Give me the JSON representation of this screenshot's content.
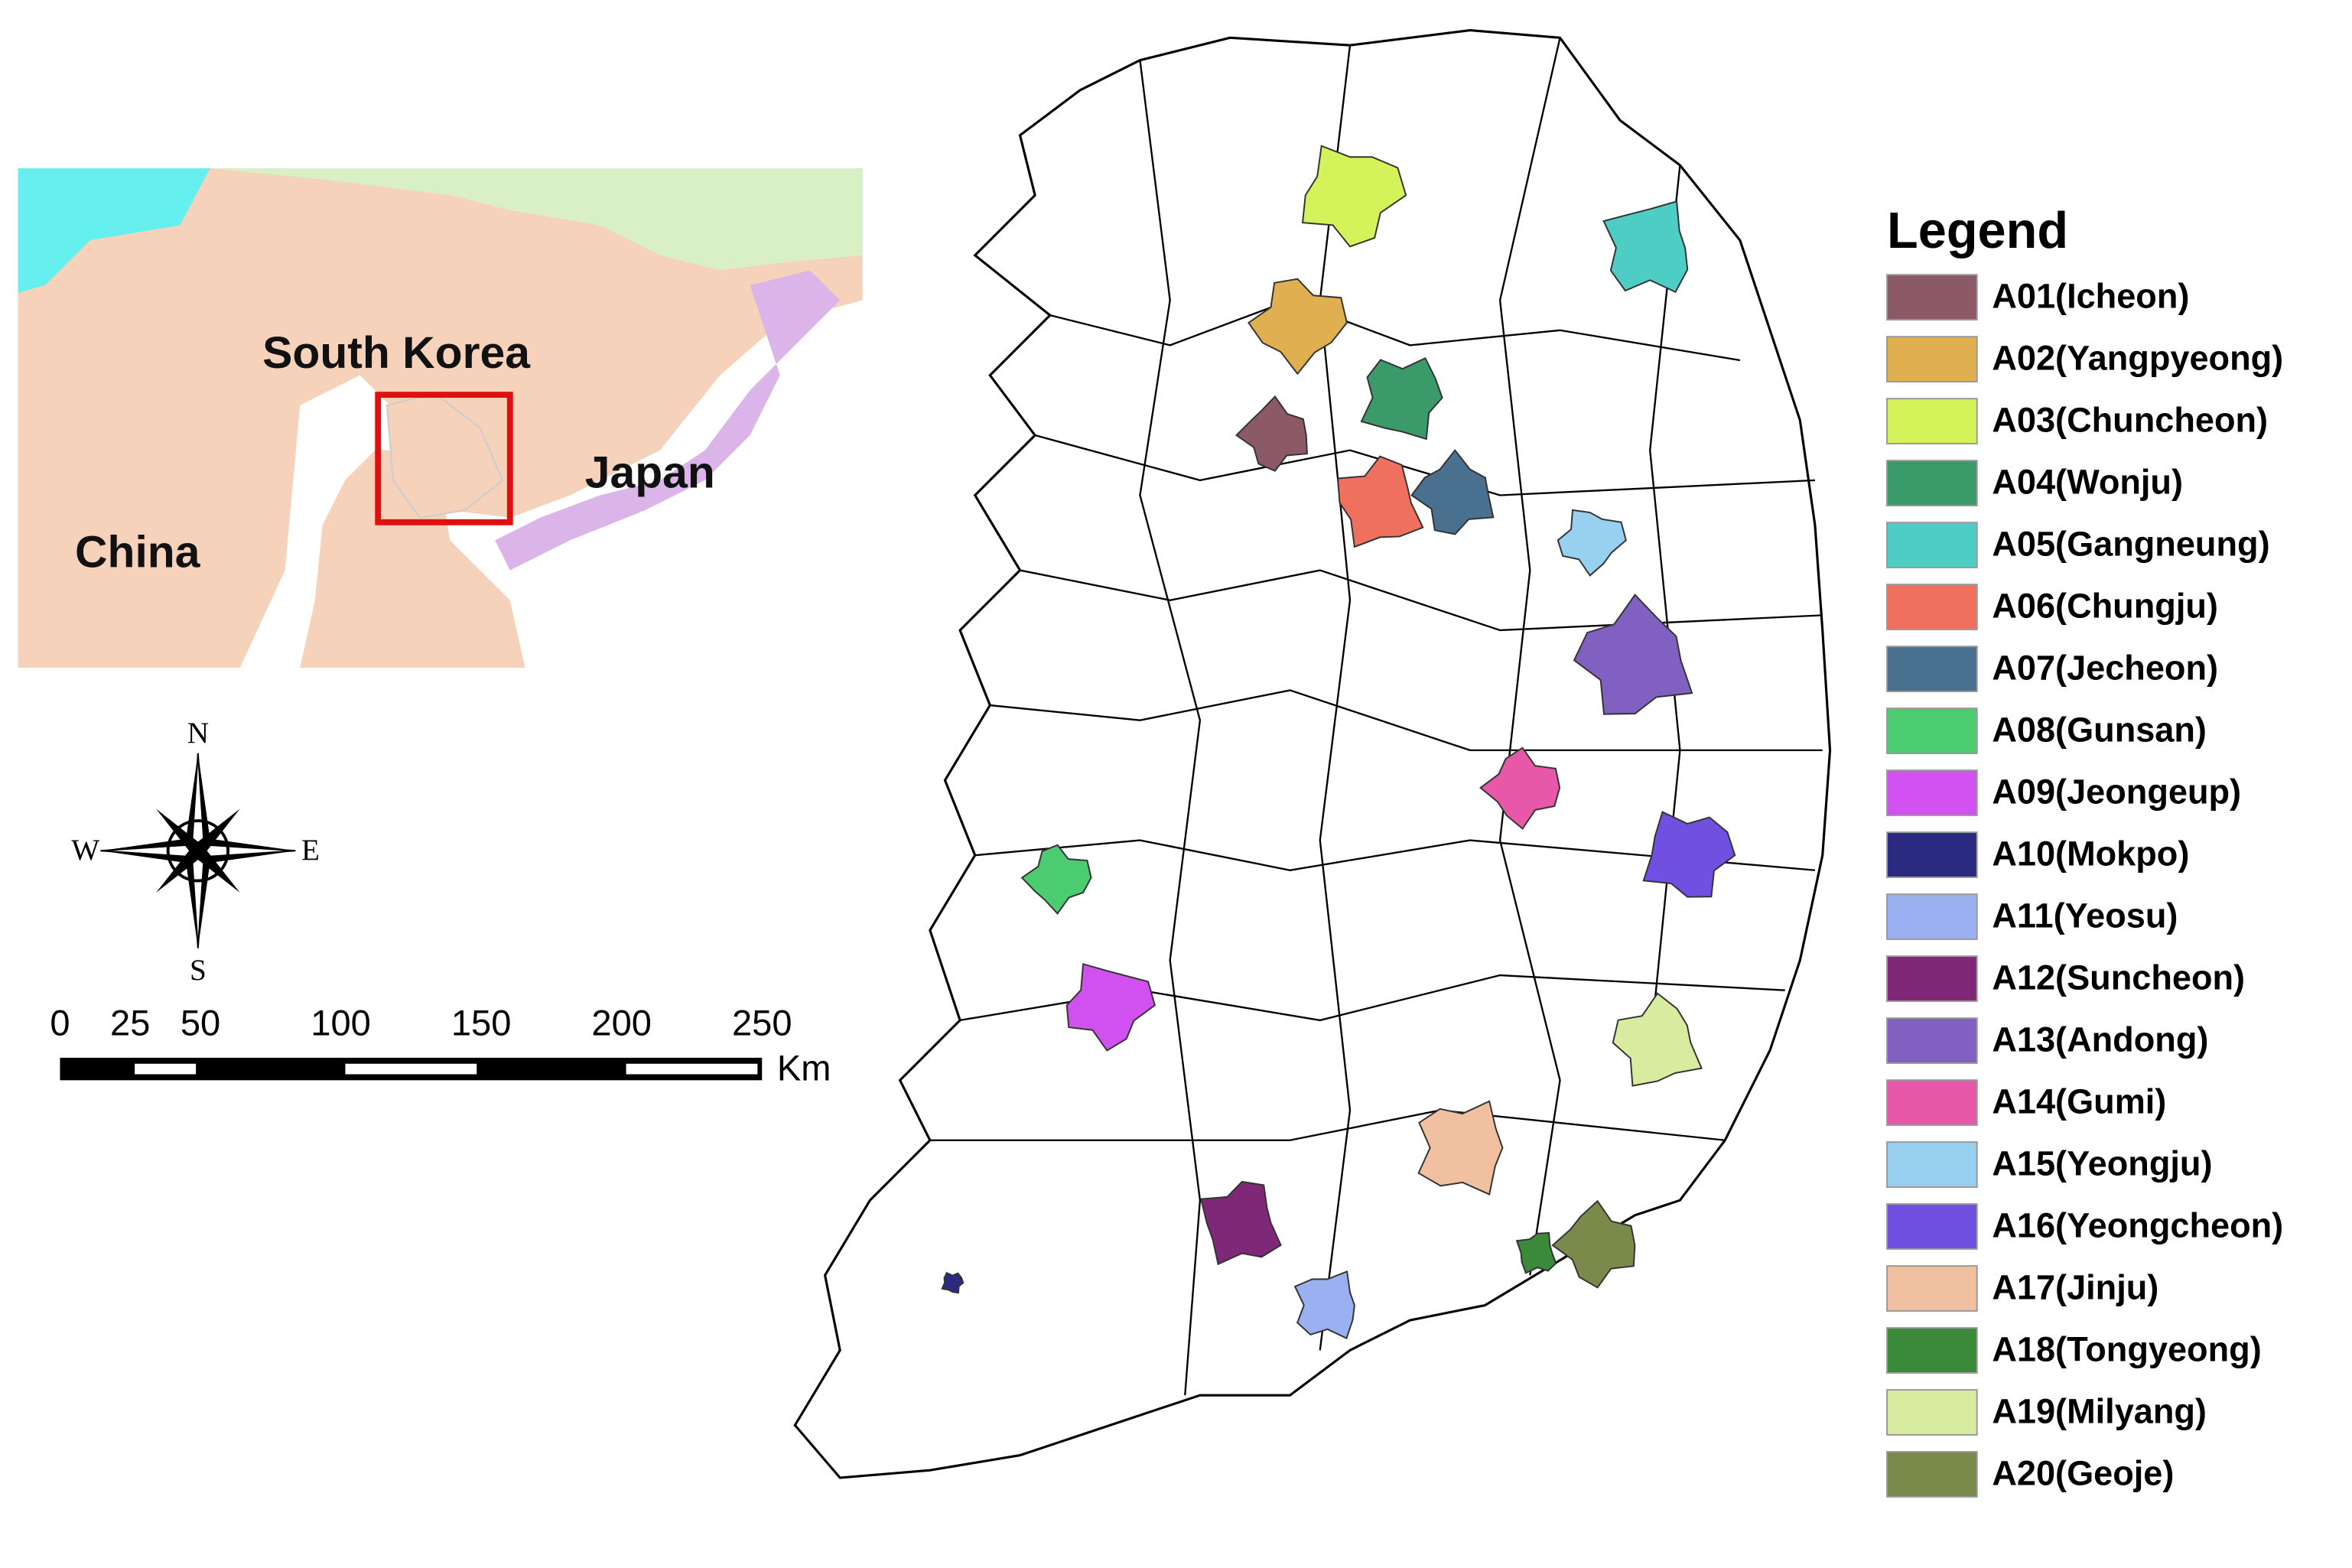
{
  "inset": {
    "labels": {
      "south_korea": "South Korea",
      "japan": "Japan",
      "china": "China"
    }
  },
  "compass": {
    "north": "N",
    "south": "S",
    "west": "W",
    "east": "E"
  },
  "scale_bar": {
    "ticks": [
      0,
      25,
      50,
      100,
      150,
      200,
      250
    ],
    "unit": "Km"
  },
  "legend": {
    "title": "Legend",
    "items": [
      {
        "label": "A01(Icheon)",
        "color": "#8b5a66"
      },
      {
        "label": "A02(Yangpyeong)",
        "color": "#e0b050"
      },
      {
        "label": "A03(Chuncheon)",
        "color": "#d4f25a"
      },
      {
        "label": "A04(Wonju)",
        "color": "#3a9a6a"
      },
      {
        "label": "A05(Gangneung)",
        "color": "#4ecdc4"
      },
      {
        "label": "A06(Chungju)",
        "color": "#f07060"
      },
      {
        "label": "A07(Jecheon)",
        "color": "#4a7090"
      },
      {
        "label": "A08(Gunsan)",
        "color": "#4ccc70"
      },
      {
        "label": "A09(Jeongeup)",
        "color": "#d050f0"
      },
      {
        "label": "A10(Mokpo)",
        "color": "#2a2a80"
      },
      {
        "label": "A11(Yeosu)",
        "color": "#9ab0f0"
      },
      {
        "label": "A12(Suncheon)",
        "color": "#802878"
      },
      {
        "label": "A13(Andong)",
        "color": "#8060c0"
      },
      {
        "label": "A14(Gumi)",
        "color": "#e858a8"
      },
      {
        "label": "A15(Yeongju)",
        "color": "#98d0f0"
      },
      {
        "label": "A16(Yeongcheon)",
        "color": "#7050e0"
      },
      {
        "label": "A17(Jinju)",
        "color": "#f0c0a0"
      },
      {
        "label": "A18(Tongyeong)",
        "color": "#3a8a3a"
      },
      {
        "label": "A19(Milyang)",
        "color": "#d8eca0"
      },
      {
        "label": "A20(Geoje)",
        "color": "#7a8a4a"
      }
    ]
  }
}
